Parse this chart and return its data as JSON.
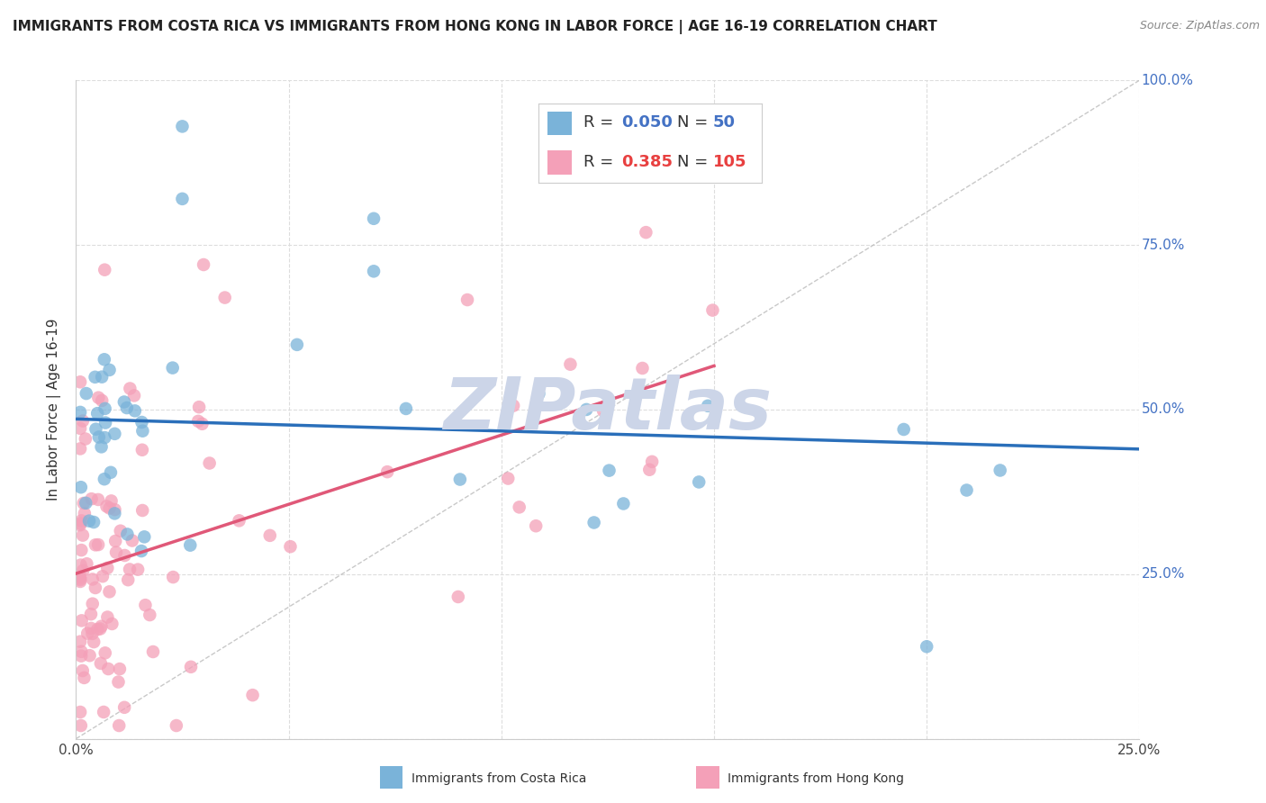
{
  "title": "IMMIGRANTS FROM COSTA RICA VS IMMIGRANTS FROM HONG KONG IN LABOR FORCE | AGE 16-19 CORRELATION CHART",
  "source": "Source: ZipAtlas.com",
  "ylabel": "In Labor Force | Age 16-19",
  "xlim": [
    0.0,
    0.25
  ],
  "ylim": [
    0.0,
    1.0
  ],
  "color_blue": "#7ab3d9",
  "color_pink": "#f4a0b8",
  "line_blue": "#2a6fba",
  "line_pink": "#e05878",
  "ref_line_color": "#bbbbbb",
  "watermark": "ZIPatlas",
  "watermark_color": "#ccd5e8",
  "background_color": "#ffffff",
  "grid_color": "#dddddd",
  "tick_color": "#4472c4",
  "title_color": "#222222",
  "source_color": "#888888",
  "legend_r1_val": "0.050",
  "legend_n1_val": "50",
  "legend_r2_val": "0.385",
  "legend_n2_val": "105",
  "cr_seed": 123,
  "hk_seed": 456
}
